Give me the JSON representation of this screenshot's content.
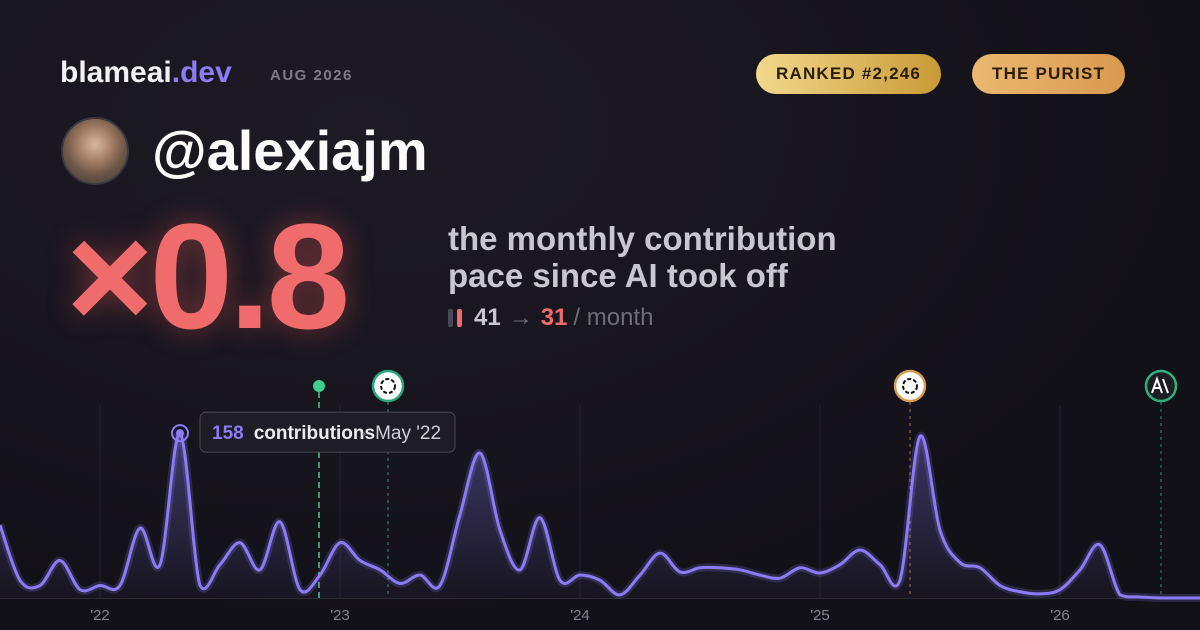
{
  "header": {
    "brand": "blameai",
    "brand_tld": ".dev",
    "date": "AUG 2026",
    "badges": [
      "RANKED #2,246",
      "THE PURIST"
    ]
  },
  "profile": {
    "handle": "@alexiajm"
  },
  "headline": {
    "multiplier": "×0.8",
    "description_lines": [
      "the monthly contribution",
      "pace since AI took off"
    ],
    "before": "41",
    "arrow": "→",
    "after": "31",
    "unit": "/ month"
  },
  "chart_data": {
    "type": "line",
    "x": [
      0,
      1,
      2,
      3,
      4,
      5,
      6,
      7,
      8,
      9,
      10,
      11,
      12,
      13,
      14,
      15,
      16,
      17,
      18,
      19,
      20,
      21,
      22,
      23,
      24,
      25,
      26,
      27,
      28,
      29,
      30,
      31,
      32,
      33,
      34,
      35,
      36,
      37,
      38,
      39,
      40,
      41,
      42,
      43,
      44,
      45,
      46,
      47,
      48,
      49,
      50,
      51,
      52,
      53,
      54,
      55,
      56,
      57,
      58,
      59,
      60
    ],
    "series": [
      {
        "name": "contributions",
        "color": "#8b7cf6",
        "values": [
          70,
          17,
          12,
          36,
          8,
          12,
          12,
          67,
          32,
          158,
          12,
          32,
          53,
          27,
          73,
          8,
          22,
          53,
          36,
          27,
          14,
          22,
          12,
          80,
          139,
          65,
          27,
          77,
          17,
          22,
          17,
          3,
          22,
          43,
          25,
          29,
          29,
          27,
          22,
          19,
          29,
          24,
          32,
          46,
          32,
          17,
          155,
          65,
          34,
          29,
          12,
          6,
          4,
          8,
          27,
          51,
          3,
          1,
          0,
          0,
          0
        ]
      }
    ],
    "tooltip_date": "May '22",
    "xlim": [
      0,
      60
    ],
    "xticks": [
      {
        "value": 5,
        "label": "'22"
      },
      {
        "value": 17,
        "label": "'23"
      },
      {
        "value": 29,
        "label": "'24"
      },
      {
        "value": 41,
        "label": "'25"
      },
      {
        "value": 53,
        "label": "'26"
      }
    ],
    "ylim": [
      0,
      185
    ],
    "grid": true
  }
}
